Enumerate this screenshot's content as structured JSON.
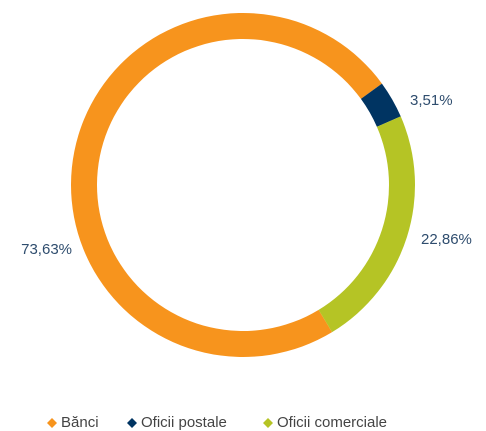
{
  "chart_data": {
    "type": "donut",
    "categories": [
      "Bănci",
      "Oficii postale",
      "Oficii comerciale"
    ],
    "values": [
      73.63,
      3.51,
      22.86
    ],
    "value_labels": [
      "73,63%",
      "3,51%",
      "22,86%"
    ],
    "colors": [
      "#f7941d",
      "#003462",
      "#b5c425"
    ],
    "legend": "bottom"
  }
}
